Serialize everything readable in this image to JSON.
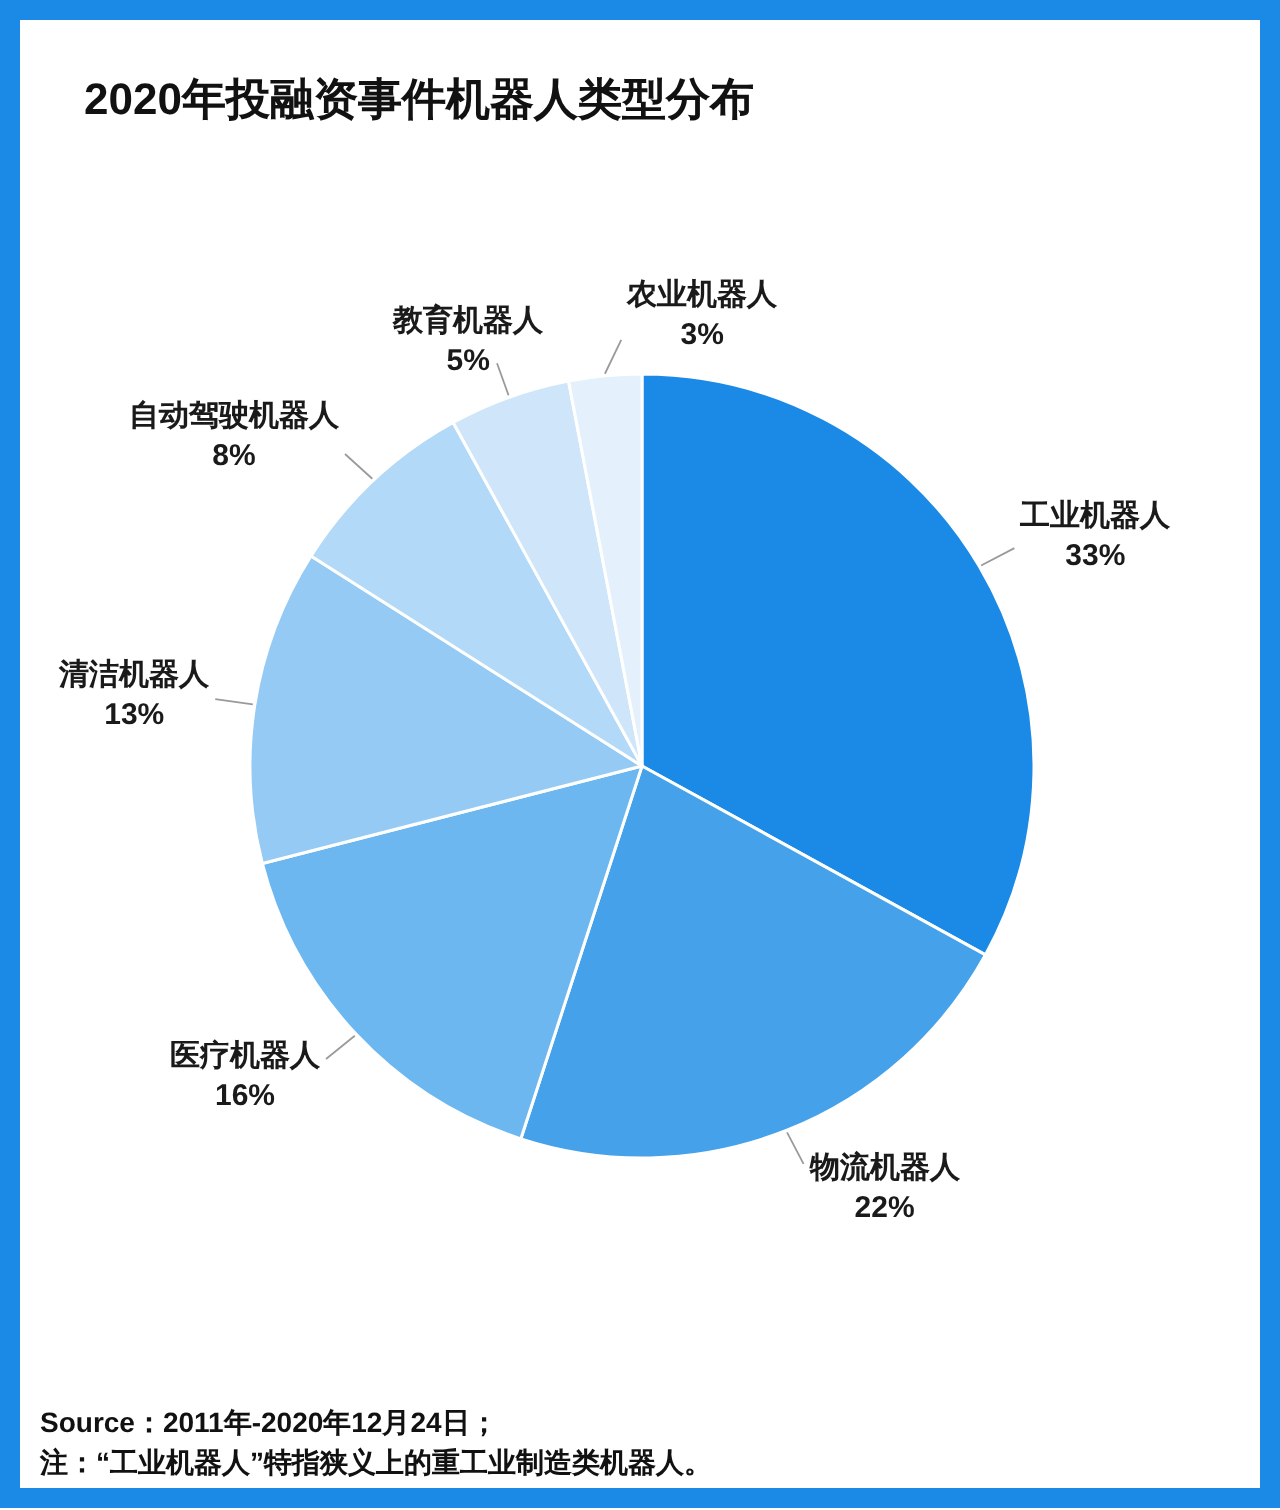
{
  "chart_data": {
    "type": "pie",
    "title": "2020年投融资事件机器人类型分布",
    "categories": [
      "工业机器人",
      "物流机器人",
      "医疗机器人",
      "清洁机器人",
      "自动驾驶机器人",
      "教育机器人",
      "农业机器人"
    ],
    "values": [
      33,
      22,
      16,
      13,
      8,
      5,
      3
    ],
    "value_labels": [
      "33%",
      "22%",
      "16%",
      "13%",
      "8%",
      "5%",
      "3%"
    ],
    "colors": [
      "#1a8ae6",
      "#45a2ea",
      "#6db7f0",
      "#94caf4",
      "#b2d9f7",
      "#cfe6fa",
      "#e4f1fc"
    ],
    "annotations": [
      "Source：2011年-2020年12月24日；",
      "注：“工业机器人”特指狭义上的重工业制造类机器人。"
    ]
  }
}
